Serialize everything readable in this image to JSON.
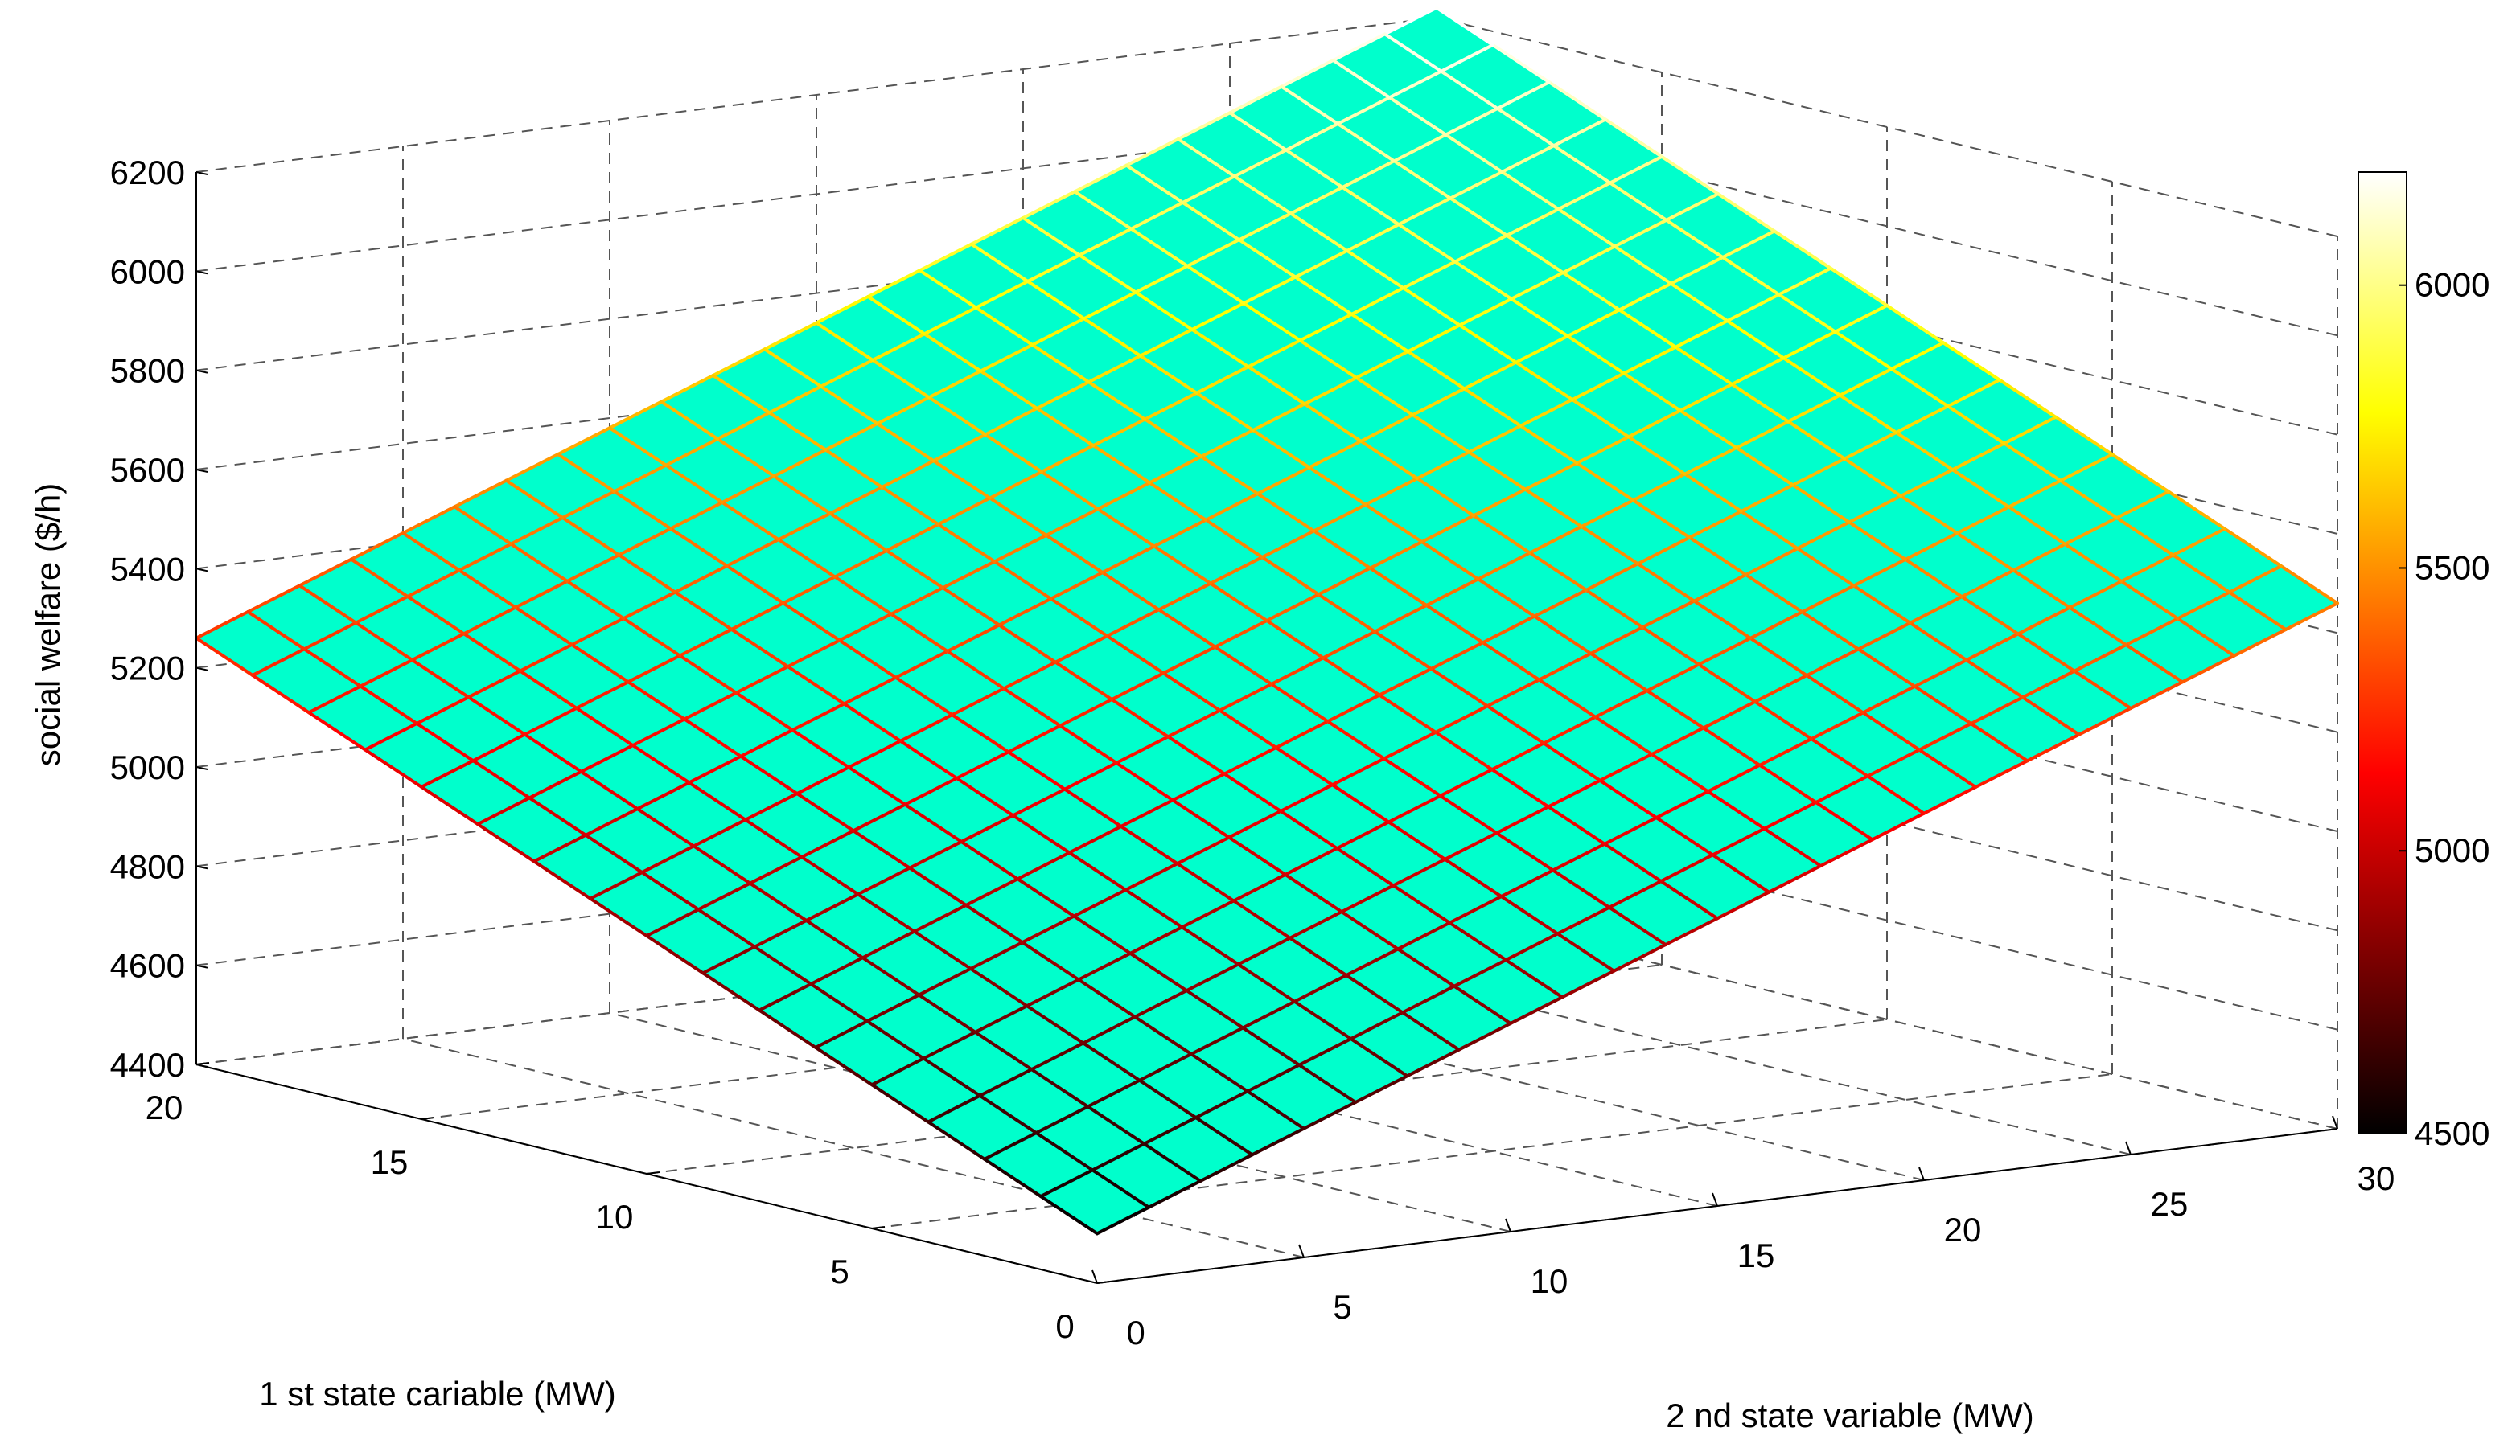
{
  "chart_data": {
    "type": "surface",
    "zlabel": "social welfare ($/h)",
    "xlabel": "1 st state cariable (MW)",
    "ylabel": "2 nd state variable (MW)",
    "x_ticks": [
      "0",
      "5",
      "10",
      "15",
      "20"
    ],
    "y_ticks": [
      "0",
      "5",
      "10",
      "15",
      "20",
      "25",
      "30"
    ],
    "z_ticks": [
      "4400",
      "4600",
      "4800",
      "5000",
      "5200",
      "5400",
      "5600",
      "5800",
      "6000",
      "6200"
    ],
    "colorbar_ticks": [
      "4500",
      "5000",
      "5500",
      "6000"
    ],
    "xlim": [
      0,
      20
    ],
    "ylim": [
      0,
      30
    ],
    "zlim": [
      4400,
      6200
    ],
    "colorbar_range": [
      4500,
      6200
    ],
    "colormap": "hot",
    "face_color": "#00ffcc",
    "grid": true,
    "mesh": {
      "x_steps": 16,
      "y_steps": 24,
      "corner_values": {
        "x0_y0": 4500,
        "x20_y0": 5260,
        "x0_y30": 5460,
        "x20_y30": 6220
      }
    }
  }
}
